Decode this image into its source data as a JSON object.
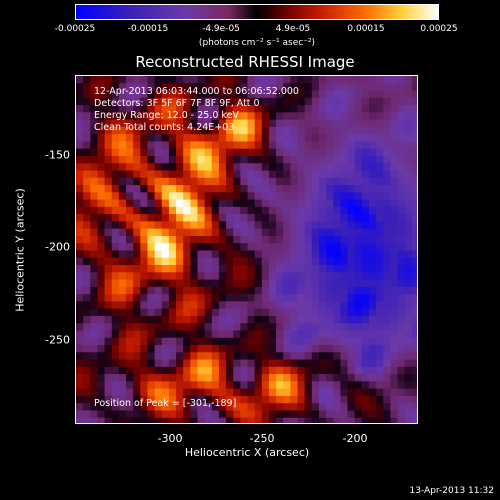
{
  "colorbar": {
    "ticks": [
      "-0.00025",
      "-0.00015",
      "-4.9e-05",
      "4.9e-05",
      "0.00015",
      "0.00025"
    ],
    "units": "(photons cm⁻² s⁻¹ asec⁻²)"
  },
  "title": "Reconstructed RHESSI Image",
  "annotations": {
    "time_range": "12-Apr-2013 06:03:44.000 to 06:06:52.000",
    "detectors": "Detectors: 3F 5F 6F 7F 8F 9F, Att 0",
    "energy": "Energy Range: 12.0 - 25.0 keV",
    "clean": "Clean    Total counts: 4.24E+03",
    "peak": "Position of Peak = [-301,-189]"
  },
  "footer_timestamp": "13-Apr-2013 11:32",
  "chart_data": {
    "type": "heatmap",
    "title": "Reconstructed RHESSI Image",
    "xlabel": "Heliocentric X (arcsec)",
    "ylabel": "Heliocentric Y (arcsec)",
    "xlim": [
      -350,
      -165
    ],
    "ylim": [
      -295,
      -106
    ],
    "x_ticks": [
      -300,
      -250,
      -200
    ],
    "y_ticks": [
      -150,
      -200,
      -250
    ],
    "colorbar_range": [
      -0.00025,
      0.00025
    ],
    "peak_position": [
      -301,
      -189
    ]
  }
}
